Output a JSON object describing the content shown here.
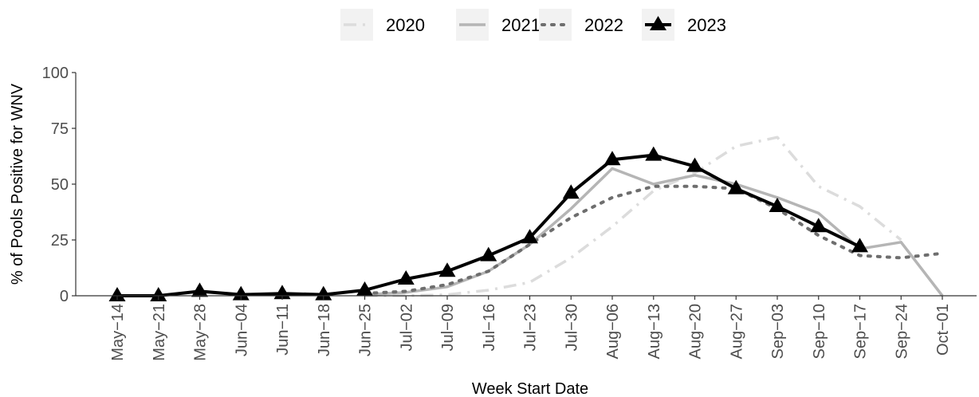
{
  "chart_data": {
    "type": "line",
    "xlabel": "Week Start Date",
    "ylabel": "% of Pools Positive for WNV",
    "ylim": [
      0,
      100
    ],
    "yticks": [
      0,
      25,
      50,
      75,
      100
    ],
    "grid": false,
    "legend_position": "top",
    "categories": [
      "May−14",
      "May−21",
      "May−28",
      "Jun−04",
      "Jun−11",
      "Jun−18",
      "Jun−25",
      "Jul−02",
      "Jul−09",
      "Jul−16",
      "Jul−23",
      "Jul−30",
      "Aug−06",
      "Aug−13",
      "Aug−20",
      "Aug−27",
      "Sep−03",
      "Sep−10",
      "Sep−17",
      "Sep−24",
      "Oct−01"
    ],
    "series": [
      {
        "name": "2020",
        "color": "#dcdcdc",
        "line_style": "dashdot",
        "marker": "none",
        "values": [
          null,
          null,
          null,
          null,
          null,
          null,
          0,
          0,
          0.5,
          2.5,
          6,
          17,
          31,
          47,
          55,
          67,
          71,
          49,
          40,
          25,
          null
        ]
      },
      {
        "name": "2021",
        "color": "#b5b5b5",
        "line_style": "solid",
        "marker": "none",
        "values": [
          null,
          null,
          null,
          null,
          null,
          null,
          0.5,
          1.5,
          4,
          11,
          23,
          39,
          57,
          50,
          54,
          50,
          44,
          37,
          21,
          24,
          0
        ]
      },
      {
        "name": "2022",
        "color": "#6e6e6e",
        "line_style": "dotted",
        "marker": "none",
        "values": [
          null,
          null,
          null,
          null,
          null,
          null,
          1,
          2,
          5,
          11,
          23,
          35,
          44,
          49,
          49,
          48,
          39,
          27,
          18,
          17,
          19
        ]
      },
      {
        "name": "2023",
        "color": "#000000",
        "line_style": "solid",
        "marker": "triangle",
        "values": [
          0,
          0,
          2,
          0.5,
          1,
          0.5,
          2.5,
          7.5,
          11,
          18,
          26,
          46,
          61,
          63,
          58,
          48,
          40,
          31,
          22,
          null,
          null
        ]
      }
    ]
  }
}
